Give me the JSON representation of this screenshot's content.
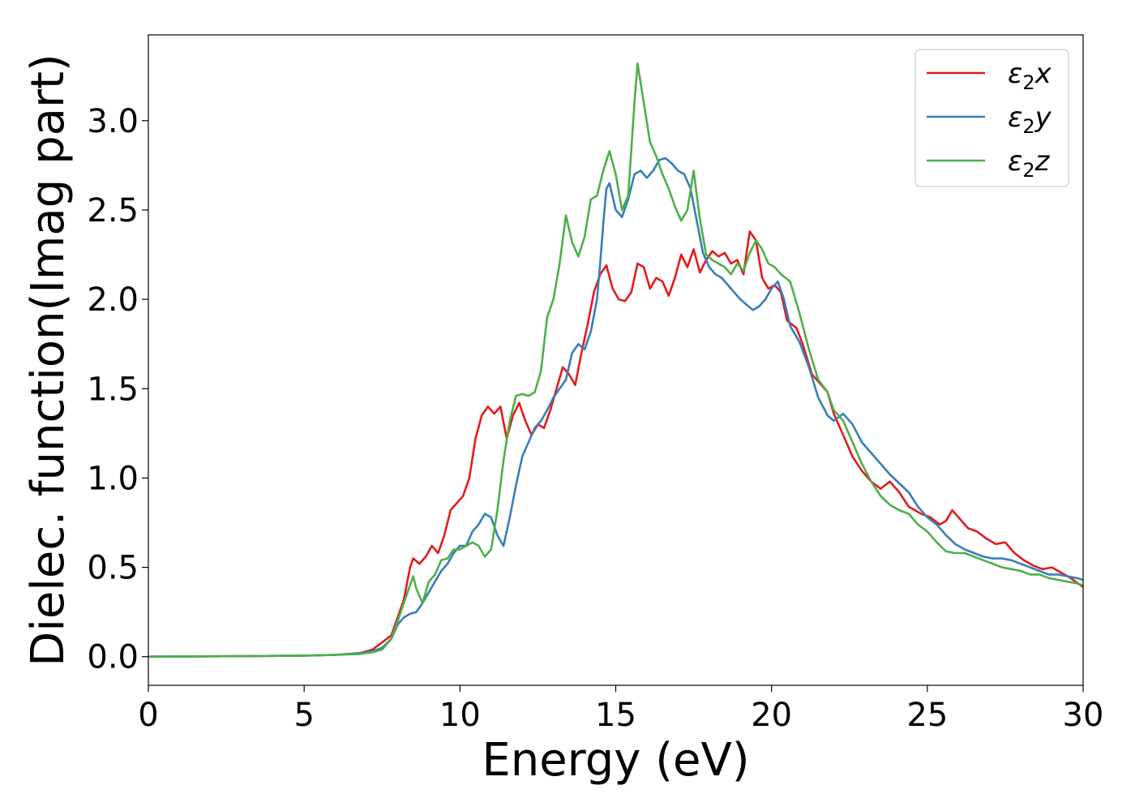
{
  "chart_data": {
    "type": "line",
    "title": "",
    "xlabel": "Energy (eV)",
    "ylabel": "Dielec. function(Imag part)",
    "xlim": [
      0,
      30
    ],
    "ylim": [
      -0.16,
      3.48
    ],
    "xticks": [
      0,
      5,
      10,
      15,
      20,
      25,
      30
    ],
    "xtick_labels": [
      "0",
      "5",
      "10",
      "15",
      "20",
      "25",
      "30"
    ],
    "yticks": [
      0.0,
      0.5,
      1.0,
      1.5,
      2.0,
      2.5,
      3.0
    ],
    "ytick_labels": [
      "0.0",
      "0.5",
      "1.0",
      "1.5",
      "2.0",
      "2.5",
      "3.0"
    ],
    "grid": false,
    "legend_position": "top-right",
    "series": [
      {
        "name_base": "ε",
        "name_sub": "2",
        "name_suffix": "x",
        "color": "#e41a1c",
        "points": [
          [
            0,
            0.0
          ],
          [
            3,
            0.003
          ],
          [
            5,
            0.006
          ],
          [
            6,
            0.01
          ],
          [
            6.8,
            0.02
          ],
          [
            7.2,
            0.04
          ],
          [
            7.5,
            0.08
          ],
          [
            7.8,
            0.12
          ],
          [
            8.0,
            0.22
          ],
          [
            8.2,
            0.32
          ],
          [
            8.4,
            0.5
          ],
          [
            8.5,
            0.55
          ],
          [
            8.7,
            0.52
          ],
          [
            8.9,
            0.56
          ],
          [
            9.1,
            0.62
          ],
          [
            9.3,
            0.58
          ],
          [
            9.5,
            0.68
          ],
          [
            9.7,
            0.82
          ],
          [
            9.9,
            0.86
          ],
          [
            10.1,
            0.9
          ],
          [
            10.3,
            1.0
          ],
          [
            10.5,
            1.22
          ],
          [
            10.7,
            1.35
          ],
          [
            10.9,
            1.4
          ],
          [
            11.1,
            1.36
          ],
          [
            11.3,
            1.4
          ],
          [
            11.5,
            1.22
          ],
          [
            11.7,
            1.35
          ],
          [
            11.9,
            1.42
          ],
          [
            12.1,
            1.32
          ],
          [
            12.3,
            1.24
          ],
          [
            12.5,
            1.3
          ],
          [
            12.7,
            1.28
          ],
          [
            12.9,
            1.38
          ],
          [
            13.1,
            1.5
          ],
          [
            13.3,
            1.62
          ],
          [
            13.5,
            1.58
          ],
          [
            13.7,
            1.52
          ],
          [
            13.9,
            1.7
          ],
          [
            14.1,
            1.86
          ],
          [
            14.3,
            2.04
          ],
          [
            14.5,
            2.14
          ],
          [
            14.7,
            2.19
          ],
          [
            14.9,
            2.06
          ],
          [
            15.1,
            2.0
          ],
          [
            15.3,
            1.99
          ],
          [
            15.5,
            2.04
          ],
          [
            15.7,
            2.2
          ],
          [
            15.9,
            2.18
          ],
          [
            16.1,
            2.06
          ],
          [
            16.3,
            2.12
          ],
          [
            16.5,
            2.1
          ],
          [
            16.7,
            2.02
          ],
          [
            16.9,
            2.12
          ],
          [
            17.1,
            2.25
          ],
          [
            17.3,
            2.18
          ],
          [
            17.5,
            2.28
          ],
          [
            17.7,
            2.15
          ],
          [
            17.9,
            2.22
          ],
          [
            18.1,
            2.27
          ],
          [
            18.3,
            2.24
          ],
          [
            18.5,
            2.26
          ],
          [
            18.7,
            2.2
          ],
          [
            18.9,
            2.22
          ],
          [
            19.1,
            2.14
          ],
          [
            19.3,
            2.38
          ],
          [
            19.5,
            2.33
          ],
          [
            19.7,
            2.12
          ],
          [
            19.9,
            2.06
          ],
          [
            20.1,
            2.08
          ],
          [
            20.3,
            2.04
          ],
          [
            20.5,
            1.88
          ],
          [
            20.8,
            1.84
          ],
          [
            21.0,
            1.75
          ],
          [
            21.3,
            1.58
          ],
          [
            21.6,
            1.52
          ],
          [
            21.8,
            1.48
          ],
          [
            22.0,
            1.36
          ],
          [
            22.3,
            1.24
          ],
          [
            22.6,
            1.12
          ],
          [
            22.9,
            1.04
          ],
          [
            23.2,
            0.98
          ],
          [
            23.5,
            0.94
          ],
          [
            23.8,
            0.98
          ],
          [
            24.1,
            0.92
          ],
          [
            24.4,
            0.84
          ],
          [
            24.8,
            0.8
          ],
          [
            25.1,
            0.78
          ],
          [
            25.4,
            0.74
          ],
          [
            25.6,
            0.76
          ],
          [
            25.8,
            0.82
          ],
          [
            26.0,
            0.78
          ],
          [
            26.3,
            0.72
          ],
          [
            26.6,
            0.7
          ],
          [
            26.9,
            0.66
          ],
          [
            27.2,
            0.63
          ],
          [
            27.5,
            0.64
          ],
          [
            27.8,
            0.58
          ],
          [
            28.1,
            0.54
          ],
          [
            28.4,
            0.51
          ],
          [
            28.7,
            0.49
          ],
          [
            29.0,
            0.5
          ],
          [
            29.3,
            0.47
          ],
          [
            29.6,
            0.44
          ],
          [
            30,
            0.39
          ]
        ]
      },
      {
        "name_base": "ε",
        "name_sub": "2",
        "name_suffix": "y",
        "color": "#377eb8",
        "points": [
          [
            0,
            0.0
          ],
          [
            3,
            0.003
          ],
          [
            5,
            0.006
          ],
          [
            6,
            0.01
          ],
          [
            6.8,
            0.02
          ],
          [
            7.2,
            0.03
          ],
          [
            7.5,
            0.05
          ],
          [
            7.8,
            0.1
          ],
          [
            8.0,
            0.18
          ],
          [
            8.2,
            0.22
          ],
          [
            8.4,
            0.24
          ],
          [
            8.6,
            0.25
          ],
          [
            8.8,
            0.3
          ],
          [
            9.0,
            0.36
          ],
          [
            9.2,
            0.42
          ],
          [
            9.4,
            0.48
          ],
          [
            9.6,
            0.52
          ],
          [
            9.8,
            0.58
          ],
          [
            10.0,
            0.62
          ],
          [
            10.2,
            0.62
          ],
          [
            10.4,
            0.7
          ],
          [
            10.6,
            0.74
          ],
          [
            10.8,
            0.8
          ],
          [
            11.0,
            0.78
          ],
          [
            11.2,
            0.68
          ],
          [
            11.4,
            0.62
          ],
          [
            11.6,
            0.78
          ],
          [
            11.8,
            0.96
          ],
          [
            12.0,
            1.12
          ],
          [
            12.2,
            1.2
          ],
          [
            12.4,
            1.28
          ],
          [
            12.6,
            1.32
          ],
          [
            12.8,
            1.38
          ],
          [
            13.0,
            1.45
          ],
          [
            13.2,
            1.5
          ],
          [
            13.4,
            1.55
          ],
          [
            13.6,
            1.7
          ],
          [
            13.8,
            1.75
          ],
          [
            14.0,
            1.72
          ],
          [
            14.2,
            1.82
          ],
          [
            14.4,
            2.0
          ],
          [
            14.5,
            2.2
          ],
          [
            14.6,
            2.42
          ],
          [
            14.7,
            2.62
          ],
          [
            14.8,
            2.65
          ],
          [
            15.0,
            2.5
          ],
          [
            15.2,
            2.46
          ],
          [
            15.4,
            2.56
          ],
          [
            15.6,
            2.7
          ],
          [
            15.8,
            2.72
          ],
          [
            16.0,
            2.68
          ],
          [
            16.2,
            2.72
          ],
          [
            16.4,
            2.78
          ],
          [
            16.6,
            2.79
          ],
          [
            16.8,
            2.76
          ],
          [
            17.0,
            2.72
          ],
          [
            17.2,
            2.7
          ],
          [
            17.4,
            2.62
          ],
          [
            17.6,
            2.44
          ],
          [
            17.8,
            2.26
          ],
          [
            18.0,
            2.18
          ],
          [
            18.2,
            2.14
          ],
          [
            18.4,
            2.12
          ],
          [
            18.6,
            2.08
          ],
          [
            18.8,
            2.04
          ],
          [
            19.0,
            2.0
          ],
          [
            19.2,
            1.97
          ],
          [
            19.4,
            1.94
          ],
          [
            19.6,
            1.96
          ],
          [
            19.8,
            2.0
          ],
          [
            20.0,
            2.06
          ],
          [
            20.2,
            2.1
          ],
          [
            20.4,
            2.0
          ],
          [
            20.6,
            1.85
          ],
          [
            20.9,
            1.76
          ],
          [
            21.2,
            1.62
          ],
          [
            21.5,
            1.45
          ],
          [
            21.8,
            1.35
          ],
          [
            22.0,
            1.32
          ],
          [
            22.3,
            1.36
          ],
          [
            22.6,
            1.3
          ],
          [
            22.9,
            1.2
          ],
          [
            23.2,
            1.14
          ],
          [
            23.5,
            1.08
          ],
          [
            23.8,
            1.02
          ],
          [
            24.1,
            0.97
          ],
          [
            24.4,
            0.92
          ],
          [
            24.7,
            0.84
          ],
          [
            25.0,
            0.78
          ],
          [
            25.3,
            0.74
          ],
          [
            25.6,
            0.68
          ],
          [
            25.9,
            0.63
          ],
          [
            26.2,
            0.6
          ],
          [
            26.5,
            0.58
          ],
          [
            26.8,
            0.56
          ],
          [
            27.1,
            0.55
          ],
          [
            27.4,
            0.55
          ],
          [
            27.7,
            0.54
          ],
          [
            28.0,
            0.52
          ],
          [
            28.3,
            0.5
          ],
          [
            28.6,
            0.48
          ],
          [
            28.9,
            0.46
          ],
          [
            29.2,
            0.46
          ],
          [
            29.5,
            0.45
          ],
          [
            29.8,
            0.44
          ],
          [
            30,
            0.43
          ]
        ]
      },
      {
        "name_base": "ε",
        "name_sub": "2",
        "name_suffix": "z",
        "color": "#4daf4a",
        "points": [
          [
            0,
            0.0
          ],
          [
            3,
            0.003
          ],
          [
            5,
            0.006
          ],
          [
            6,
            0.01
          ],
          [
            6.8,
            0.015
          ],
          [
            7.2,
            0.025
          ],
          [
            7.5,
            0.04
          ],
          [
            7.8,
            0.1
          ],
          [
            8.0,
            0.2
          ],
          [
            8.2,
            0.3
          ],
          [
            8.4,
            0.4
          ],
          [
            8.5,
            0.45
          ],
          [
            8.6,
            0.38
          ],
          [
            8.8,
            0.3
          ],
          [
            9.0,
            0.42
          ],
          [
            9.2,
            0.46
          ],
          [
            9.4,
            0.54
          ],
          [
            9.6,
            0.55
          ],
          [
            9.8,
            0.6
          ],
          [
            10.0,
            0.6
          ],
          [
            10.2,
            0.62
          ],
          [
            10.4,
            0.64
          ],
          [
            10.6,
            0.62
          ],
          [
            10.8,
            0.56
          ],
          [
            11.0,
            0.6
          ],
          [
            11.2,
            0.82
          ],
          [
            11.4,
            1.1
          ],
          [
            11.6,
            1.32
          ],
          [
            11.8,
            1.46
          ],
          [
            12.0,
            1.47
          ],
          [
            12.2,
            1.46
          ],
          [
            12.4,
            1.48
          ],
          [
            12.6,
            1.6
          ],
          [
            12.8,
            1.9
          ],
          [
            13.0,
            2.0
          ],
          [
            13.2,
            2.2
          ],
          [
            13.4,
            2.47
          ],
          [
            13.6,
            2.32
          ],
          [
            13.8,
            2.24
          ],
          [
            14.0,
            2.35
          ],
          [
            14.2,
            2.56
          ],
          [
            14.4,
            2.58
          ],
          [
            14.6,
            2.72
          ],
          [
            14.8,
            2.83
          ],
          [
            15.0,
            2.7
          ],
          [
            15.2,
            2.5
          ],
          [
            15.4,
            2.58
          ],
          [
            15.6,
            3.1
          ],
          [
            15.7,
            3.32
          ],
          [
            15.9,
            3.1
          ],
          [
            16.1,
            2.88
          ],
          [
            16.3,
            2.8
          ],
          [
            16.5,
            2.7
          ],
          [
            16.7,
            2.62
          ],
          [
            16.9,
            2.52
          ],
          [
            17.1,
            2.44
          ],
          [
            17.3,
            2.5
          ],
          [
            17.5,
            2.72
          ],
          [
            17.7,
            2.45
          ],
          [
            17.9,
            2.25
          ],
          [
            18.1,
            2.22
          ],
          [
            18.3,
            2.2
          ],
          [
            18.5,
            2.18
          ],
          [
            18.7,
            2.14
          ],
          [
            18.9,
            2.2
          ],
          [
            19.1,
            2.16
          ],
          [
            19.3,
            2.26
          ],
          [
            19.5,
            2.33
          ],
          [
            19.7,
            2.28
          ],
          [
            19.9,
            2.2
          ],
          [
            20.1,
            2.18
          ],
          [
            20.3,
            2.14
          ],
          [
            20.6,
            2.1
          ],
          [
            20.9,
            1.92
          ],
          [
            21.2,
            1.72
          ],
          [
            21.5,
            1.55
          ],
          [
            21.8,
            1.48
          ],
          [
            22.0,
            1.38
          ],
          [
            22.3,
            1.32
          ],
          [
            22.6,
            1.2
          ],
          [
            22.9,
            1.08
          ],
          [
            23.2,
            0.98
          ],
          [
            23.5,
            0.9
          ],
          [
            23.8,
            0.85
          ],
          [
            24.1,
            0.82
          ],
          [
            24.4,
            0.8
          ],
          [
            24.7,
            0.74
          ],
          [
            25.0,
            0.7
          ],
          [
            25.3,
            0.64
          ],
          [
            25.6,
            0.59
          ],
          [
            25.9,
            0.58
          ],
          [
            26.2,
            0.58
          ],
          [
            26.5,
            0.56
          ],
          [
            26.8,
            0.54
          ],
          [
            27.1,
            0.52
          ],
          [
            27.4,
            0.5
          ],
          [
            27.7,
            0.49
          ],
          [
            28.0,
            0.48
          ],
          [
            28.3,
            0.46
          ],
          [
            28.6,
            0.46
          ],
          [
            28.9,
            0.44
          ],
          [
            29.2,
            0.43
          ],
          [
            29.5,
            0.42
          ],
          [
            29.8,
            0.41
          ],
          [
            30,
            0.4
          ]
        ]
      }
    ]
  }
}
